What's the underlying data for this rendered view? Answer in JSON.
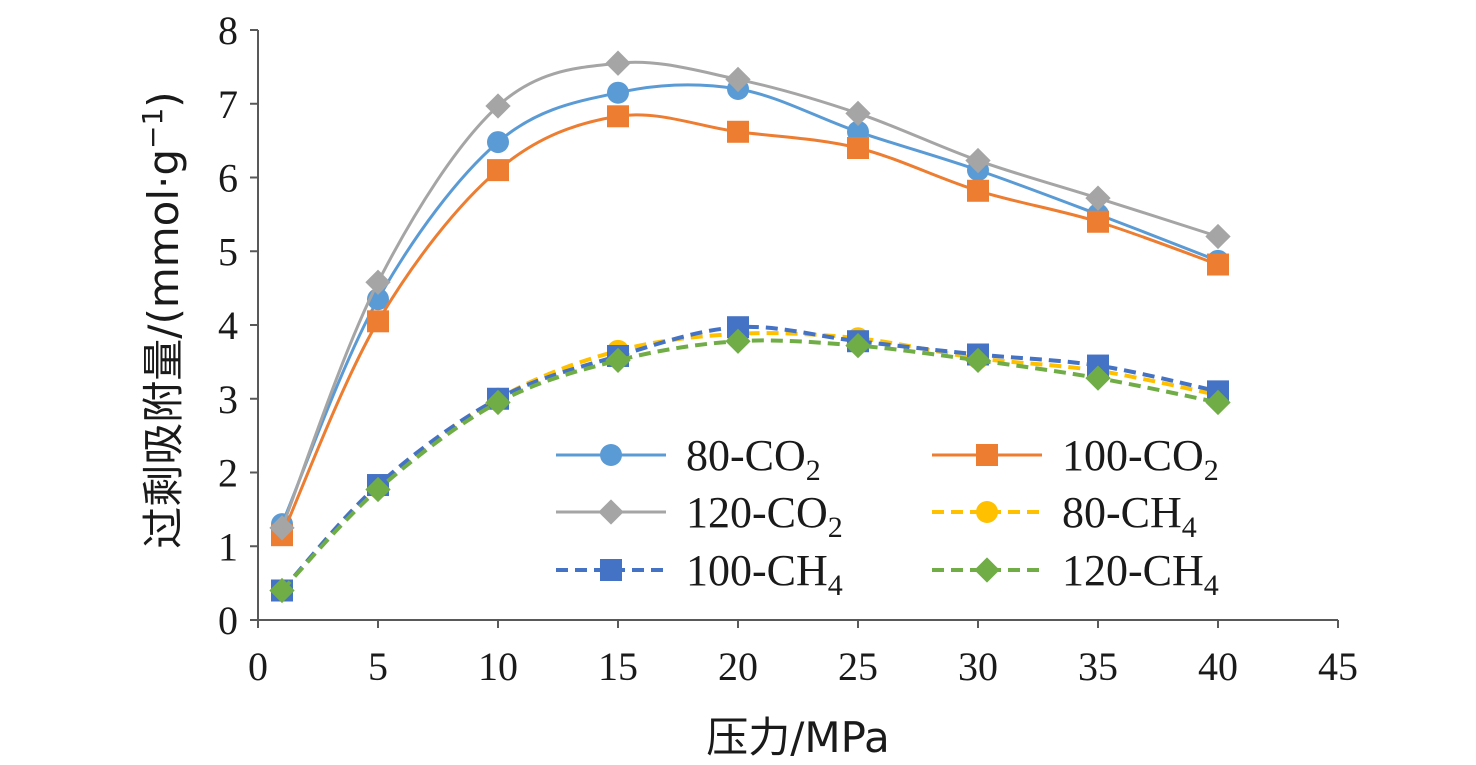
{
  "chart_data": {
    "type": "line",
    "title": "",
    "xlabel": "压力/MPa",
    "ylabel": "过剩吸附量/(mmol·g",
    "ylabel_sup": "−1",
    "ylabel_close": ")",
    "xlim": [
      0,
      45
    ],
    "ylim": [
      0,
      8
    ],
    "xticks": [
      0,
      5,
      10,
      15,
      20,
      25,
      30,
      35,
      40,
      45
    ],
    "yticks": [
      0,
      1,
      2,
      3,
      4,
      5,
      6,
      7,
      8
    ],
    "grid": false,
    "legend_position": "lower-right",
    "x": [
      1,
      5,
      10,
      15,
      20,
      25,
      30,
      35,
      40
    ],
    "series": [
      {
        "name": "80-CO",
        "sub": "2",
        "color": "#5b9bd5",
        "marker": "circle",
        "dash": false,
        "values": [
          1.3,
          4.35,
          6.48,
          7.15,
          7.2,
          6.62,
          6.1,
          5.5,
          4.87
        ]
      },
      {
        "name": "100-CO",
        "sub": "2",
        "color": "#ed7d31",
        "marker": "square",
        "dash": false,
        "values": [
          1.15,
          4.05,
          6.1,
          6.83,
          6.62,
          6.4,
          5.82,
          5.4,
          4.82
        ]
      },
      {
        "name": "120-CO",
        "sub": "2",
        "color": "#a5a5a5",
        "marker": "diamond",
        "dash": false,
        "values": [
          1.25,
          4.58,
          6.97,
          7.55,
          7.33,
          6.87,
          6.23,
          5.72,
          5.2
        ]
      },
      {
        "name": "80-CH",
        "sub": "4",
        "color": "#ffc000",
        "marker": "circle",
        "dash": true,
        "values": [
          0.4,
          1.8,
          3.0,
          3.65,
          3.88,
          3.82,
          3.55,
          3.38,
          3.05
        ]
      },
      {
        "name": "100-CH",
        "sub": "4",
        "color": "#4472c4",
        "marker": "square",
        "dash": true,
        "values": [
          0.4,
          1.83,
          3.0,
          3.58,
          3.97,
          3.78,
          3.6,
          3.45,
          3.1
        ]
      },
      {
        "name": "120-CH",
        "sub": "4",
        "color": "#70ad47",
        "marker": "diamond",
        "dash": true,
        "values": [
          0.4,
          1.77,
          2.95,
          3.52,
          3.78,
          3.72,
          3.52,
          3.28,
          2.95
        ]
      }
    ]
  }
}
